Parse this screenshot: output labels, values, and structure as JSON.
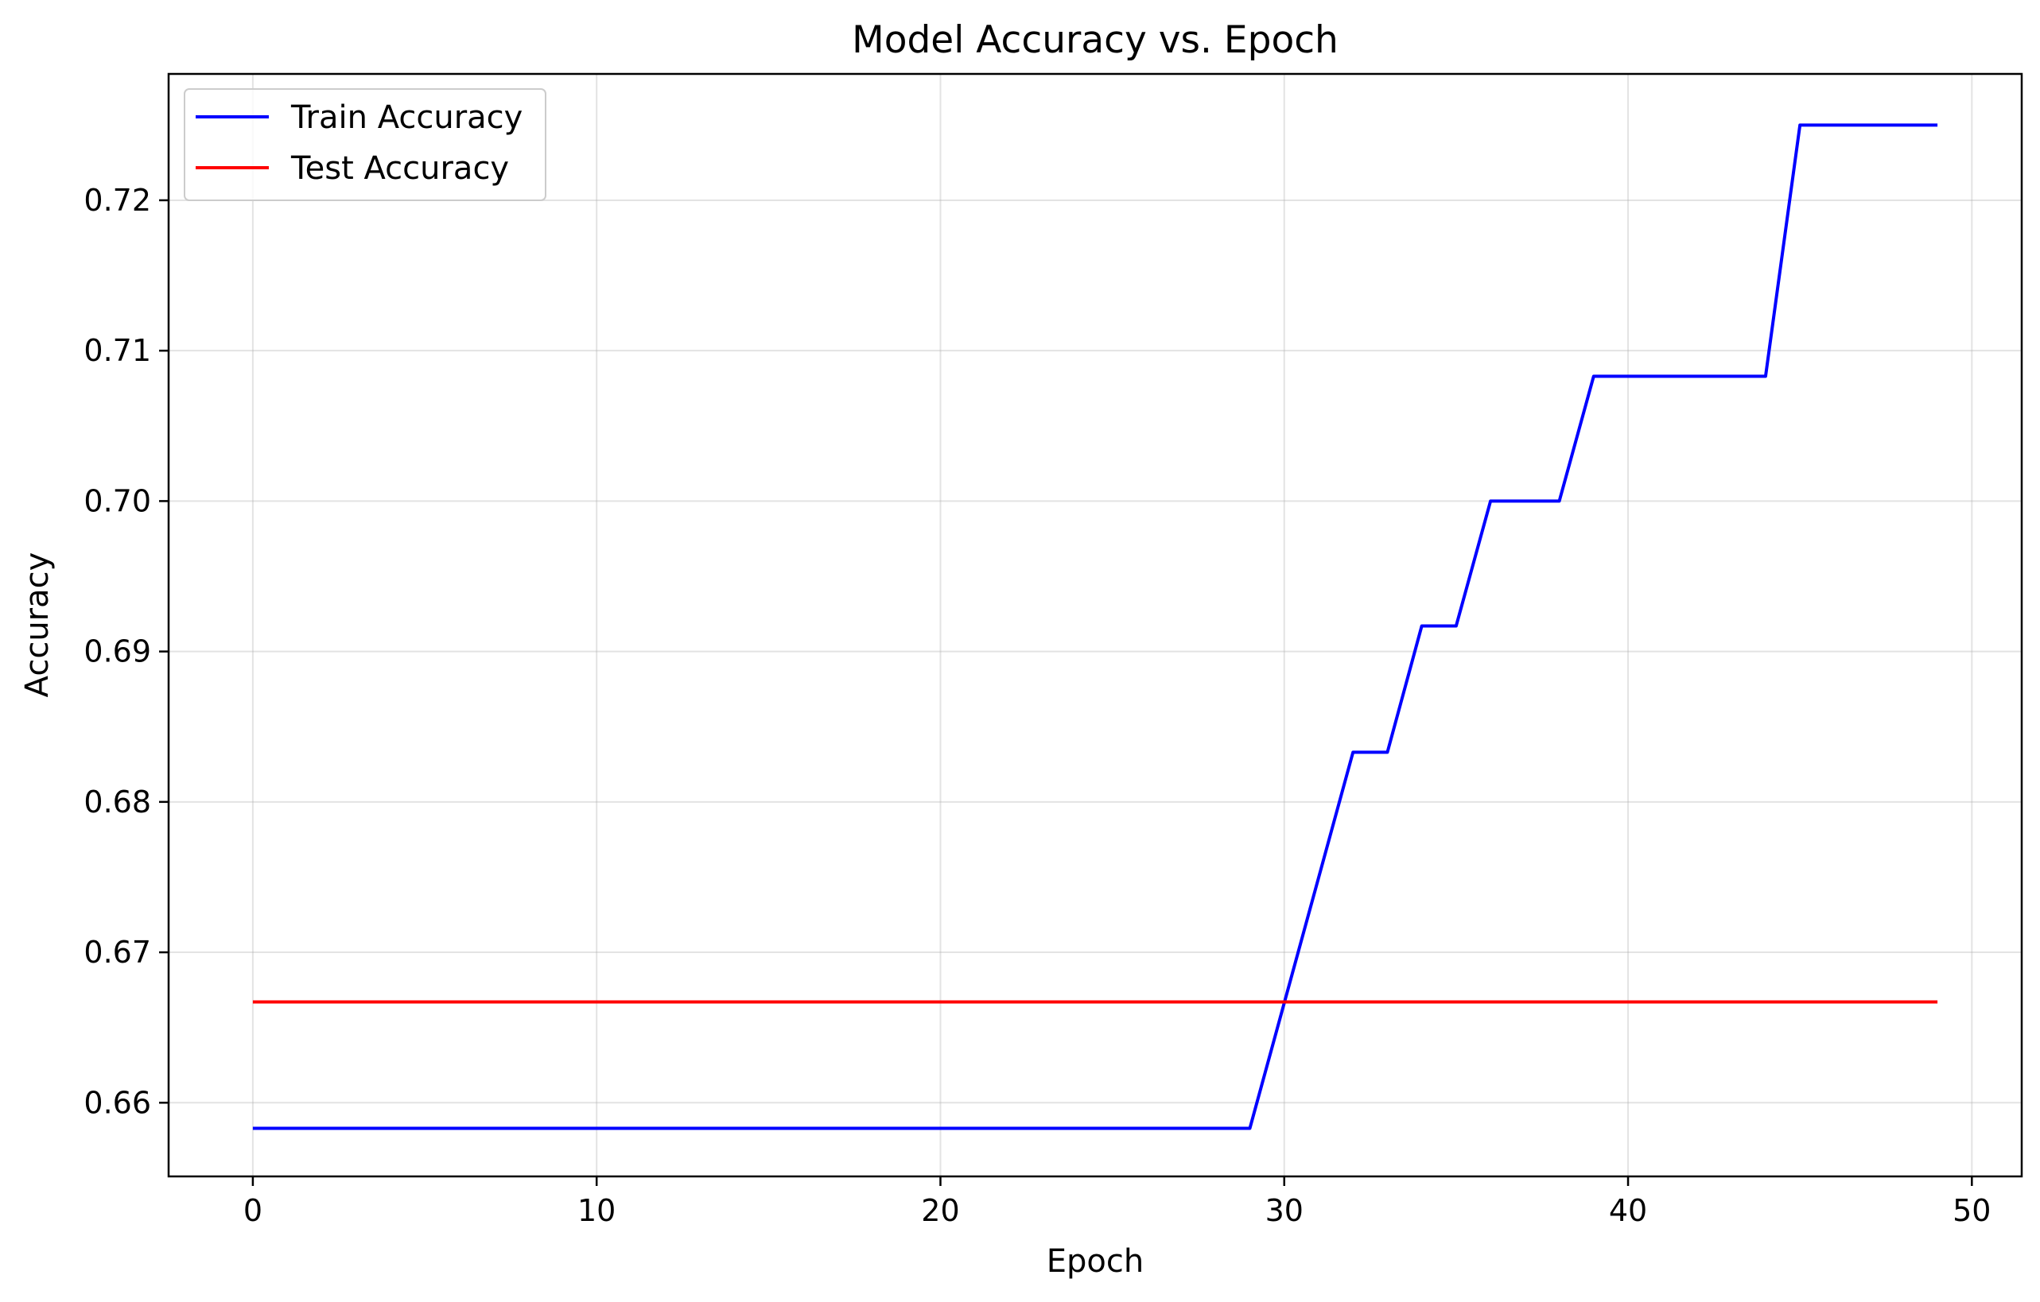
{
  "chart_data": {
    "type": "line",
    "title": "Model Accuracy vs. Epoch",
    "xlabel": "Epoch",
    "ylabel": "Accuracy",
    "xlim": [
      -2.45,
      51.45
    ],
    "ylim": [
      0.6551,
      0.7284
    ],
    "xticks": [
      0,
      10,
      20,
      30,
      40,
      50
    ],
    "yticks": [
      0.66,
      0.67,
      0.68,
      0.69,
      0.7,
      0.71,
      0.72
    ],
    "ytick_labels": [
      "0.66",
      "0.67",
      "0.68",
      "0.69",
      "0.70",
      "0.71",
      "0.72"
    ],
    "grid": true,
    "legend": "upper-left",
    "series": [
      {
        "name": "Train Accuracy",
        "color": "#0000ff",
        "x": [
          0,
          29,
          32,
          33,
          34,
          35,
          36,
          38,
          39,
          44,
          45,
          49
        ],
        "y": [
          0.6583,
          0.6583,
          0.6833,
          0.6833,
          0.6917,
          0.6917,
          0.7,
          0.7,
          0.7083,
          0.7083,
          0.725,
          0.725
        ]
      },
      {
        "name": "Test Accuracy",
        "color": "#ff0000",
        "x": [
          0,
          49
        ],
        "y": [
          0.6667,
          0.6667
        ]
      }
    ]
  }
}
